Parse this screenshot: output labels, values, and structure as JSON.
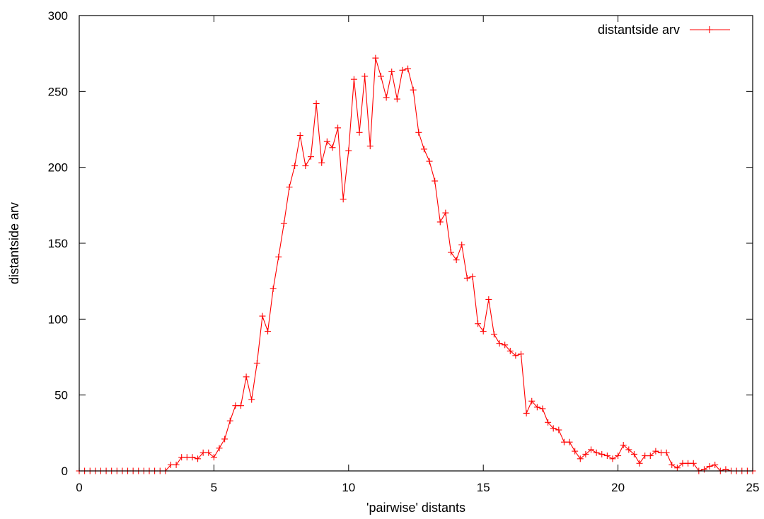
{
  "chart_data": {
    "type": "line",
    "title": "",
    "xlabel": "'pairwise' distants",
    "ylabel": "distantside arv",
    "xlim": [
      0,
      25
    ],
    "ylim": [
      0,
      300
    ],
    "xticks": [
      0,
      5,
      10,
      15,
      20,
      25
    ],
    "yticks": [
      0,
      50,
      100,
      150,
      200,
      250,
      300
    ],
    "grid": false,
    "legend": {
      "position": "top-right",
      "entries": [
        "distantside arv"
      ]
    },
    "colors": {
      "series": "#ff0000",
      "axes": "#000000",
      "background": "#ffffff"
    },
    "marker": "plus",
    "series": [
      {
        "name": "distantside arv",
        "x": [
          0.0,
          0.2,
          0.4,
          0.6,
          0.8,
          1.0,
          1.2,
          1.4,
          1.6,
          1.8,
          2.0,
          2.2,
          2.4,
          2.6,
          2.8,
          3.0,
          3.2,
          3.4,
          3.6,
          3.8,
          4.0,
          4.2,
          4.4,
          4.6,
          4.8,
          5.0,
          5.2,
          5.4,
          5.6,
          5.8,
          6.0,
          6.2,
          6.4,
          6.6,
          6.8,
          7.0,
          7.2,
          7.4,
          7.6,
          7.8,
          8.0,
          8.2,
          8.4,
          8.6,
          8.8,
          9.0,
          9.2,
          9.4,
          9.6,
          9.8,
          10.0,
          10.2,
          10.4,
          10.6,
          10.8,
          11.0,
          11.2,
          11.4,
          11.6,
          11.8,
          12.0,
          12.2,
          12.4,
          12.6,
          12.8,
          13.0,
          13.2,
          13.4,
          13.6,
          13.8,
          14.0,
          14.2,
          14.4,
          14.6,
          14.8,
          15.0,
          15.2,
          15.4,
          15.6,
          15.8,
          16.0,
          16.2,
          16.4,
          16.6,
          16.8,
          17.0,
          17.2,
          17.4,
          17.6,
          17.8,
          18.0,
          18.2,
          18.4,
          18.6,
          18.8,
          19.0,
          19.2,
          19.4,
          19.6,
          19.8,
          20.0,
          20.2,
          20.4,
          20.6,
          20.8,
          21.0,
          21.2,
          21.4,
          21.6,
          21.8,
          22.0,
          22.2,
          22.4,
          22.6,
          22.8,
          23.0,
          23.2,
          23.4,
          23.6,
          23.8,
          24.0,
          24.2,
          24.4,
          24.6,
          24.8,
          25.0
        ],
        "y": [
          0,
          0,
          0,
          0,
          0,
          0,
          0,
          0,
          0,
          0,
          0,
          0,
          0,
          0,
          0,
          0,
          0,
          4,
          4,
          9,
          9,
          9,
          8,
          12,
          12,
          9,
          15,
          21,
          33,
          43,
          43,
          62,
          47,
          71,
          102,
          92,
          120,
          141,
          163,
          187,
          201,
          221,
          201,
          207,
          242,
          203,
          217,
          213,
          226,
          179,
          211,
          258,
          223,
          260,
          214,
          272,
          260,
          246,
          263,
          245,
          264,
          265,
          251,
          223,
          212,
          204,
          191,
          164,
          170,
          144,
          139,
          149,
          127,
          128,
          97,
          92,
          113,
          90,
          84,
          83,
          79,
          76,
          77,
          38,
          46,
          42,
          41,
          32,
          28,
          27,
          19,
          19,
          13,
          8,
          11,
          14,
          12,
          11,
          10,
          8,
          10,
          17,
          14,
          11,
          5,
          10,
          10,
          13,
          12,
          12,
          4,
          2,
          5,
          5,
          5,
          0,
          1,
          3,
          4,
          0,
          1,
          0,
          0,
          0,
          0,
          0
        ]
      }
    ]
  }
}
